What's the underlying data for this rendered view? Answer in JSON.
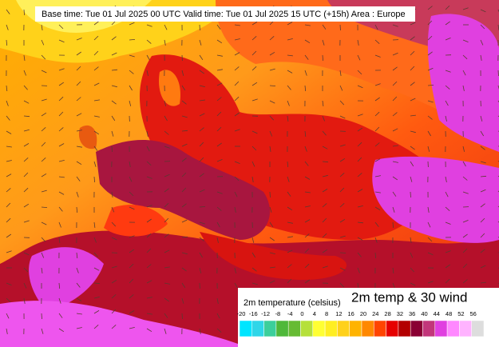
{
  "header": {
    "text": "Base time: Tue 01 Jul 2025 00 UTC Valid time: Tue 01 Jul 2025 15 UTC (+15h) Area : Europe"
  },
  "legend": {
    "title": "2m temperature (celsius)",
    "product": "2m temp & 30 wind",
    "labels": [
      "-20",
      "-16",
      "-12",
      "-8",
      "-4",
      "0",
      "4",
      "8",
      "12",
      "16",
      "20",
      "24",
      "28",
      "32",
      "36",
      "40",
      "44",
      "48",
      "52",
      "56"
    ],
    "colors": [
      "#00e5ff",
      "#2fd6e8",
      "#3ccf9b",
      "#4fb83a",
      "#66bb33",
      "#b5e03a",
      "#ffff33",
      "#ffee22",
      "#ffd11a",
      "#ffb300",
      "#ff8800",
      "#ff4400",
      "#e60000",
      "#b30000",
      "#8a0033",
      "#c2367a",
      "#e040e0",
      "#ff88ff",
      "#ffb3ff",
      "#dddddd"
    ]
  }
}
